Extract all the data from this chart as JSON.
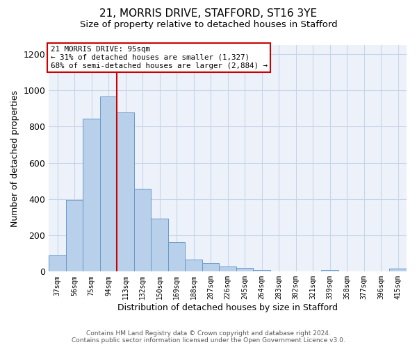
{
  "title": "21, MORRIS DRIVE, STAFFORD, ST16 3YE",
  "subtitle": "Size of property relative to detached houses in Stafford",
  "xlabel": "Distribution of detached houses by size in Stafford",
  "ylabel": "Number of detached properties",
  "footer_line1": "Contains HM Land Registry data © Crown copyright and database right 2024.",
  "footer_line2": "Contains public sector information licensed under the Open Government Licence v3.0.",
  "bar_labels": [
    "37sqm",
    "56sqm",
    "75sqm",
    "94sqm",
    "113sqm",
    "132sqm",
    "150sqm",
    "169sqm",
    "188sqm",
    "207sqm",
    "226sqm",
    "245sqm",
    "264sqm",
    "283sqm",
    "302sqm",
    "321sqm",
    "339sqm",
    "358sqm",
    "377sqm",
    "396sqm",
    "415sqm"
  ],
  "bar_values": [
    90,
    397,
    845,
    967,
    878,
    456,
    291,
    163,
    68,
    49,
    30,
    20,
    10,
    3,
    3,
    3,
    10,
    3,
    3,
    3,
    15
  ],
  "bar_color": "#b8d0ea",
  "bar_edge_color": "#6699cc",
  "ylim": [
    0,
    1250
  ],
  "yticks": [
    0,
    200,
    400,
    600,
    800,
    1000,
    1200
  ],
  "red_line_x": 3.5,
  "annotation_line1": "21 MORRIS DRIVE: 95sqm",
  "annotation_line2": "← 31% of detached houses are smaller (1,327)",
  "annotation_line3": "68% of semi-detached houses are larger (2,884) →",
  "annotation_box_facecolor": "#ffffff",
  "annotation_box_edgecolor": "#cc0000",
  "red_line_color": "#cc0000",
  "grid_color": "#c8d4e8",
  "bg_color": "#edf2fa",
  "title_fontsize": 11,
  "subtitle_fontsize": 9.5,
  "ylabel_fontsize": 9,
  "xlabel_fontsize": 9,
  "tick_fontsize": 7,
  "footer_fontsize": 6.5
}
